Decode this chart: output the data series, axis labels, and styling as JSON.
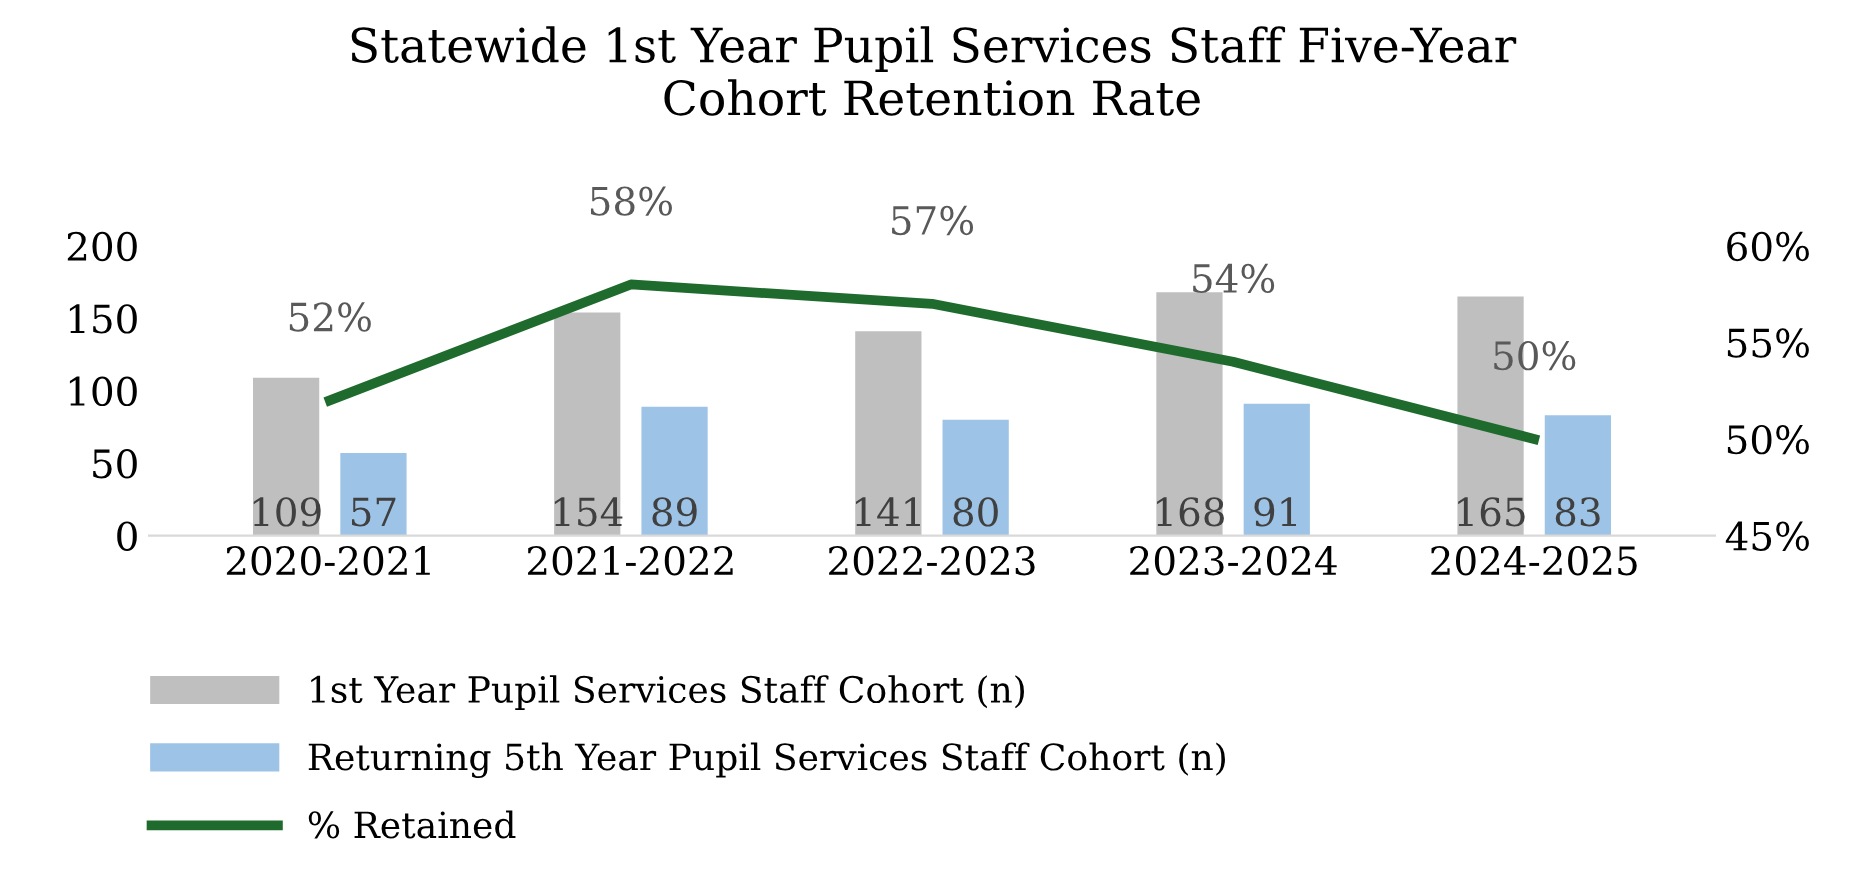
{
  "chart_data": {
    "type": "bar",
    "title": "Statewide 1st Year Pupil Services Staff Five-Year\nCohort Retention Rate",
    "categories": [
      "2020-2021",
      "2021-2022",
      "2022-2023",
      "2023-2024",
      "2024-2025"
    ],
    "series": [
      {
        "name": "1st Year Pupil Services Staff Cohort (n)",
        "color": "#bfbfbf",
        "values": [
          109,
          154,
          141,
          168,
          165
        ],
        "value_labels": [
          "109",
          "154",
          "141",
          "168",
          "165"
        ]
      },
      {
        "name": "Returning 5th Year Pupil Services Staff Cohort (n)",
        "color": "#9dc3e6",
        "values": [
          57,
          89,
          80,
          91,
          83
        ],
        "value_labels": [
          "57",
          "89",
          "80",
          "91",
          "83"
        ]
      },
      {
        "name": "% Retained",
        "type": "line",
        "axis": "y2",
        "color": "#1f6b2e",
        "values": [
          52,
          58,
          57,
          54,
          50
        ],
        "value_labels": [
          "52%",
          "58%",
          "57%",
          "54%",
          "50%"
        ]
      }
    ],
    "ylim": [
      0,
      200
    ],
    "yticks": [
      0,
      50,
      100,
      150,
      200
    ],
    "y2lim": [
      45,
      60
    ],
    "y2ticks": [
      {
        "value": 45,
        "label": "45%"
      },
      {
        "value": 50,
        "label": "50%"
      },
      {
        "value": 55,
        "label": "55%"
      },
      {
        "value": 60,
        "label": "60%"
      }
    ],
    "grid": false,
    "legend": "bottom",
    "marker": "none",
    "line_style": "solid"
  }
}
